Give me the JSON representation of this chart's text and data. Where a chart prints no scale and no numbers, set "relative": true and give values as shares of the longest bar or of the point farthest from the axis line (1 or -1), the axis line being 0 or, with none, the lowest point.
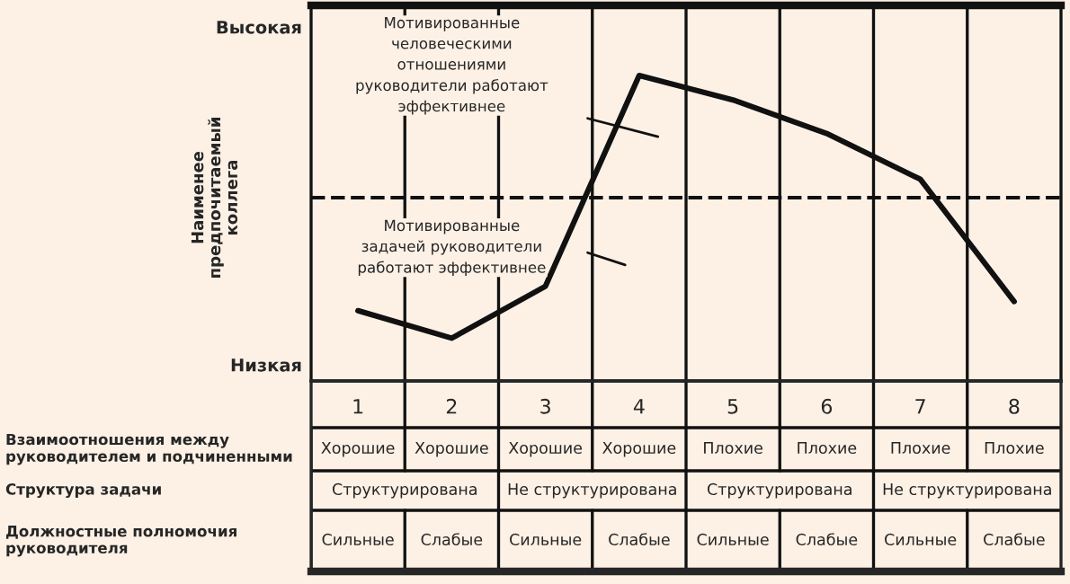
{
  "chart_data": {
    "type": "line",
    "relative": true,
    "ylabel": "Наименее\nпредпочитаемый\nколлега",
    "categories": [
      "1",
      "2",
      "3",
      "4",
      "5",
      "6",
      "7",
      "8"
    ],
    "series": [
      {
        "color": "#111111",
        "values": [
          0.23,
          0.14,
          0.31,
          1,
          0.92,
          0.81,
          0.66,
          0.26
        ]
      }
    ],
    "ref_lines": [
      {
        "axis": "y",
        "value": 0.6,
        "line_style": "dashed",
        "color": "#111111"
      }
    ],
    "grid": "x",
    "marker": "none",
    "line_style": "solid",
    "legend": false,
    "annotations": [
      "Высокая",
      "Низкая",
      "Мотивированные\nчеловеческими\nотношениями\nруководители работают\nэффективнее",
      "Мотивированные\nзадачей руководители\nработают эффективнее",
      "Взаимоотношения между\nруководителем и подчиненными",
      "Хорошие",
      "Хорошие",
      "Хорошие",
      "Хорошие",
      "Плохие",
      "Плохие",
      "Плохие",
      "Плохие",
      "Структура задачи",
      "Структурирована",
      "Не структурирована",
      "Структурирована",
      "Не структурирована",
      "Должностные полномочия\nруководителя",
      "Сильные",
      "Слабые",
      "Сильные",
      "Слабые",
      "Сильные",
      "Слабые",
      "Сильные",
      "Слабые"
    ]
  }
}
